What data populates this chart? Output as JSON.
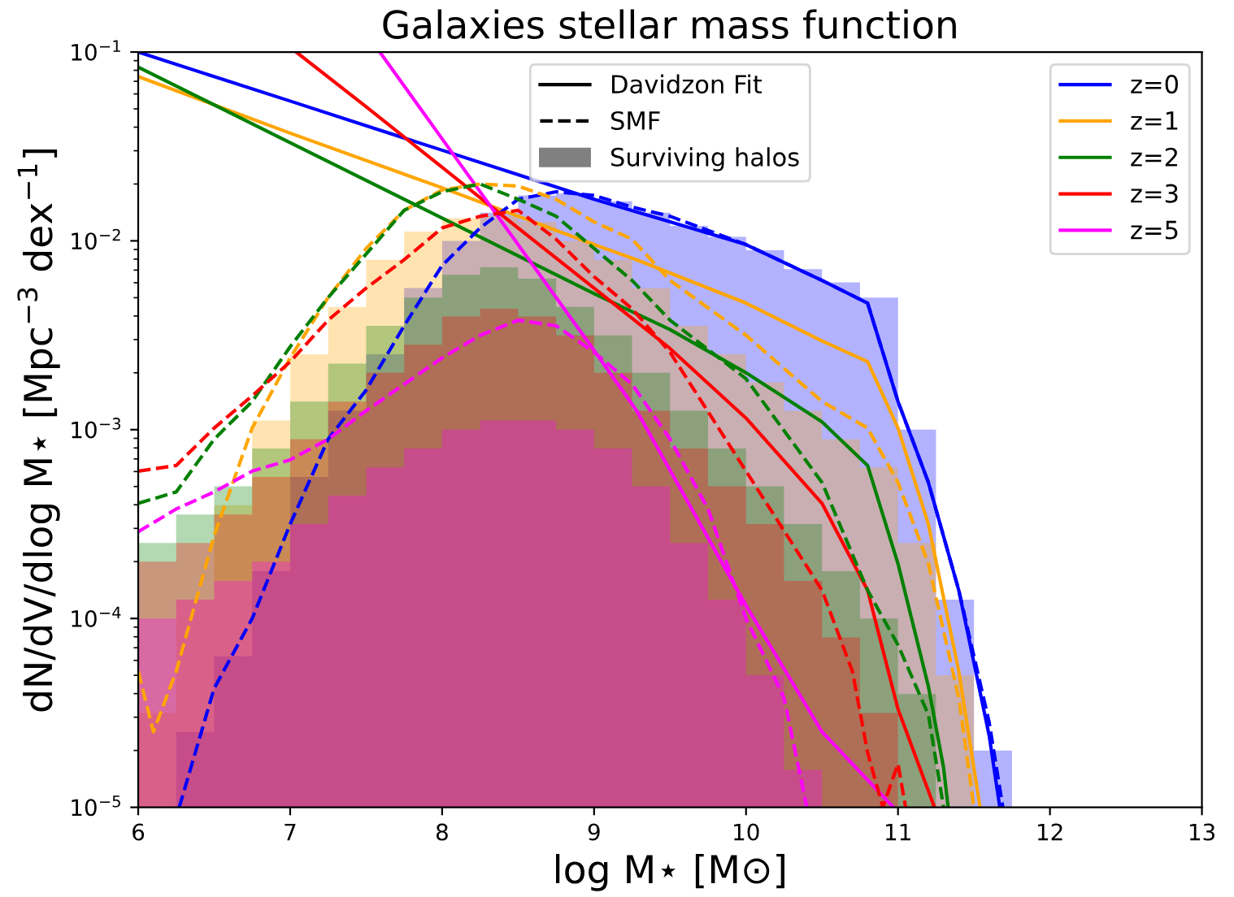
{
  "chart_data": {
    "type": "line",
    "title": "Galaxies stellar mass function",
    "xlabel": "log M⋆ [M⊙]",
    "ylabel": "dN/dV/dlog M⋆ [Mpc$^{−3}$ dex$^{−1}$]",
    "xlim": [
      6,
      13
    ],
    "xticks": [
      6,
      7,
      8,
      9,
      10,
      11,
      12,
      13
    ],
    "ylim": [
      1e-05,
      0.1
    ],
    "log": "y",
    "yticks": [
      {
        "value": 1e-05,
        "label": "10$^{−5}$"
      },
      {
        "value": 0.0001,
        "label": "10$^{−4}$"
      },
      {
        "value": 0.001,
        "label": "10$^{−3}$"
      },
      {
        "value": 0.01,
        "label": "10$^{−2}$"
      },
      {
        "value": 0.1,
        "label": "10$^{−1}$"
      }
    ],
    "legend": "top right",
    "annotations": [
      "Davidzon Fit",
      "SMF",
      "Surviving halos"
    ],
    "bins": [
      6,
      6.25,
      6.5,
      6.75,
      7,
      7.25,
      7.5,
      7.75,
      8,
      8.25,
      8.5,
      8.75,
      9,
      9.25,
      9.5,
      9.75,
      10,
      10.25,
      10.5,
      10.75,
      11,
      11.25,
      11.5,
      11.75
    ],
    "series": [
      {
        "type": "histogram",
        "color": "#0000ff",
        "values": [
          1e-05,
          2.51e-05,
          6.31e-05,
          0.000178,
          0.000562,
          0.00126,
          0.00251,
          0.00562,
          0.01,
          0.0141,
          0.0174,
          0.0178,
          0.0162,
          0.0141,
          0.012,
          0.0105,
          0.00891,
          0.00708,
          0.00603,
          0.00501,
          0.001,
          0.000126,
          2e-05
        ]
      },
      {
        "type": "histogram",
        "color": "#ffa500",
        "values": [
          3.16e-05,
          0.000126,
          0.000398,
          0.00112,
          0.00251,
          0.00447,
          0.00794,
          0.0112,
          0.0132,
          0.0135,
          0.0126,
          0.01,
          0.00794,
          0.00562,
          0.00355,
          0.00251,
          0.00178,
          0.00126,
          0.000891,
          0.000631,
          0.000251,
          5.01e-05,
          1e-05
        ]
      },
      {
        "type": "histogram",
        "color": "#008000",
        "values": [
          0.000251,
          0.000355,
          0.000501,
          0.000794,
          0.00141,
          0.00224,
          0.00355,
          0.00501,
          0.00661,
          0.00724,
          0.00631,
          0.00447,
          0.00316,
          0.002,
          0.00126,
          0.000794,
          0.000501,
          0.000316,
          0.000178,
          0.0001,
          3.98e-05,
          1e-05,
          1e-05
        ]
      },
      {
        "type": "histogram",
        "color": "#ff0000",
        "values": [
          0.0002,
          0.000251,
          0.000355,
          0.000562,
          0.000891,
          0.00141,
          0.002,
          0.00282,
          0.00398,
          0.00437,
          0.00398,
          0.00316,
          0.002,
          0.00126,
          0.000794,
          0.000501,
          0.000316,
          0.000158,
          7.94e-05,
          3.16e-05,
          1e-05,
          1e-05,
          1e-05
        ]
      },
      {
        "type": "histogram",
        "color": "#ff00ff",
        "values": [
          0.0001,
          0.000126,
          0.000158,
          0.0002,
          0.000316,
          0.000447,
          0.000631,
          0.000794,
          0.001,
          0.00112,
          0.00112,
          0.001,
          0.000794,
          0.000501,
          0.000251,
          0.000126,
          5.01e-05,
          1.58e-05,
          1e-05,
          1e-05,
          1e-05,
          1e-05,
          1e-05
        ]
      },
      {
        "line_style": "solid",
        "name": "z=0",
        "color": "#0000ff",
        "x": [
          6,
          6.5,
          7,
          7.5,
          8,
          8.5,
          9,
          9.5,
          10,
          10.5,
          10.8,
          11,
          11.2,
          11.4,
          11.6,
          11.67
        ],
        "values": [
          0.1,
          0.0741,
          0.055,
          0.0407,
          0.0302,
          0.0224,
          0.0166,
          0.0126,
          0.00955,
          0.00617,
          0.00468,
          0.00141,
          0.000525,
          0.000141,
          2.4e-05,
          1e-05
        ]
      },
      {
        "line_style": "solid",
        "name": "z=1",
        "color": "#ffa500",
        "x": [
          6,
          7,
          8,
          9,
          9.28,
          10,
          10.5,
          10.8,
          11,
          11.2,
          11.4,
          11.54
        ],
        "values": [
          0.0741,
          0.0372,
          0.0191,
          0.00955,
          0.00794,
          0.00468,
          0.00295,
          0.00229,
          0.00102,
          0.000316,
          5.25e-05,
          1e-05
        ]
      },
      {
        "line_style": "solid",
        "name": "z=2",
        "color": "#008000",
        "x": [
          6,
          7,
          8,
          9,
          9.5,
          10,
          10.5,
          10.8,
          11,
          11.2,
          11.3,
          11.33
        ],
        "values": [
          0.0832,
          0.0331,
          0.0132,
          0.00525,
          0.00339,
          0.002,
          0.0011,
          0.000646,
          0.000195,
          4.37e-05,
          1.62e-05,
          1e-05
        ]
      },
      {
        "line_style": "solid",
        "name": "z=3",
        "color": "#ff0000",
        "x": [
          7.04,
          7.5,
          8,
          8.5,
          9,
          9.5,
          10,
          10.5,
          10.8,
          11,
          11.24
        ],
        "values": [
          0.1,
          0.0513,
          0.0245,
          0.0117,
          0.00562,
          0.00269,
          0.00115,
          0.000407,
          0.000141,
          3.31e-05,
          1e-05
        ]
      },
      {
        "line_style": "solid",
        "name": "z=5",
        "color": "#ff00ff",
        "x": [
          7.59,
          8,
          8.5,
          9,
          9.28,
          10,
          10.5,
          10.97
        ],
        "values": [
          0.1,
          0.0347,
          0.00955,
          0.00263,
          0.00126,
          0.000117,
          2.51e-05,
          1e-05
        ]
      },
      {
        "line_style": "dashed",
        "color": "#0000ff",
        "x": [
          6.27,
          6.5,
          6.75,
          7,
          7.25,
          7.5,
          7.75,
          8,
          8.25,
          8.5,
          8.75,
          9,
          9.25,
          9.5,
          10,
          10.5,
          10.8,
          11,
          11.2,
          11.4,
          11.6,
          11.69
        ],
        "values": [
          1e-05,
          4.27e-05,
          0.0001,
          0.000316,
          0.000891,
          0.00162,
          0.00355,
          0.00741,
          0.0117,
          0.0166,
          0.0182,
          0.0174,
          0.0151,
          0.0135,
          0.00955,
          0.00617,
          0.00468,
          0.00141,
          0.000525,
          0.000141,
          2.82e-05,
          1e-05
        ]
      },
      {
        "line_style": "dashed",
        "color": "#ffa500",
        "x": [
          6,
          6.1,
          6.25,
          6.5,
          6.75,
          7,
          7.25,
          7.5,
          7.75,
          8,
          8.25,
          8.5,
          8.75,
          9,
          9.25,
          9.5,
          10,
          10.5,
          10.8,
          11,
          11.2,
          11.4,
          11.5
        ],
        "values": [
          5.25e-05,
          2.51e-05,
          5.25e-05,
          0.000275,
          0.00102,
          0.0024,
          0.00501,
          0.00912,
          0.0145,
          0.0186,
          0.02,
          0.0195,
          0.0166,
          0.0126,
          0.0102,
          0.00617,
          0.00316,
          0.00141,
          0.00102,
          0.000525,
          0.000195,
          3.8e-05,
          1e-05
        ]
      },
      {
        "line_style": "dashed",
        "color": "#008000",
        "x": [
          6,
          6.25,
          6.5,
          6.75,
          7,
          7.25,
          7.5,
          7.75,
          8,
          8.25,
          8.5,
          8.75,
          9,
          9.25,
          9.5,
          10,
          10.5,
          10.8,
          11,
          11.2,
          11.3
        ],
        "values": [
          0.000407,
          0.000468,
          0.000891,
          0.00141,
          0.00275,
          0.00501,
          0.00851,
          0.0145,
          0.0182,
          0.02,
          0.0166,
          0.0135,
          0.00912,
          0.00617,
          0.0038,
          0.00186,
          0.000525,
          0.000141,
          7.24e-05,
          3.09e-05,
          1e-05
        ]
      },
      {
        "line_style": "dashed",
        "color": "#ff0000",
        "x": [
          6,
          6.25,
          6.5,
          6.75,
          7,
          7.25,
          7.5,
          7.75,
          8,
          8.25,
          8.5,
          8.75,
          9,
          9.25,
          9.5,
          10,
          10.5,
          10.7,
          10.8,
          10.9,
          11,
          11.05
        ],
        "values": [
          0.000603,
          0.000646,
          0.00102,
          0.00151,
          0.00229,
          0.0038,
          0.00562,
          0.00794,
          0.0117,
          0.0135,
          0.0145,
          0.0102,
          0.00646,
          0.00437,
          0.00257,
          0.000603,
          0.000141,
          5.25e-05,
          1.95e-05,
          1e-05,
          1.7e-05,
          1e-05
        ]
      },
      {
        "line_style": "dashed",
        "color": "#ff00ff",
        "x": [
          6,
          6.25,
          6.5,
          6.75,
          7,
          7.25,
          7.5,
          7.75,
          8,
          8.25,
          8.5,
          8.75,
          9,
          9.25,
          9.5,
          9.75,
          10,
          10.25,
          10.4
        ],
        "values": [
          0.000288,
          0.00038,
          0.000468,
          0.000603,
          0.000692,
          0.000891,
          0.00126,
          0.00174,
          0.0024,
          0.00316,
          0.0038,
          0.00355,
          0.00257,
          0.00174,
          0.000891,
          0.00038,
          0.0001,
          3.8e-05,
          1e-05
        ]
      }
    ]
  }
}
